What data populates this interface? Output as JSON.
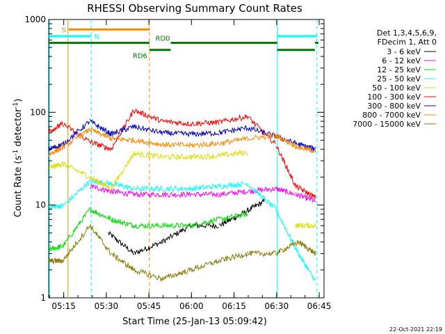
{
  "chart_data": {
    "type": "line",
    "title": "RHESSI Observing Summary Count Rates",
    "xlabel": "Start Time (25-Jan-13 05:09:42)",
    "ylabel_main": "Count Rate (s",
    "ylabel_sup1": "-1",
    "ylabel_mid": " detector",
    "ylabel_sup2": "-1",
    "ylabel_end": ")",
    "yscale": "log",
    "ylim": [
      1,
      1000
    ],
    "xlim_minutes": [
      0,
      97
    ],
    "x_ticks": [
      {
        "label": "05:15",
        "t": 5.3
      },
      {
        "label": "05:30",
        "t": 20.3
      },
      {
        "label": "05:45",
        "t": 35.3
      },
      {
        "label": "06:00",
        "t": 50.3
      },
      {
        "label": "06:15",
        "t": 65.3
      },
      {
        "label": "06:30",
        "t": 80.3
      },
      {
        "label": "06:45",
        "t": 95.3
      }
    ],
    "y_ticks": [
      {
        "label": "1",
        "v": 1
      },
      {
        "label": "10",
        "v": 10
      },
      {
        "label": "100",
        "v": 100
      },
      {
        "label": "1000",
        "v": 1000
      }
    ],
    "legend_header": [
      "Det 1,3,4,5,6,9,",
      "FDecim 1, Att 0"
    ],
    "series": [
      {
        "name": "3 - 6 keV",
        "color": "#000000",
        "values": [
          [
            0,
            null
          ],
          [
            14.5,
            null
          ],
          [
            21,
            5
          ],
          [
            30,
            3
          ],
          [
            40,
            4
          ],
          [
            50,
            6
          ],
          [
            60,
            6
          ],
          [
            68,
            8
          ],
          [
            76,
            11
          ],
          [
            80,
            null
          ]
        ]
      },
      {
        "name": "6 - 12 keV",
        "color": "#ff00ff",
        "values": [
          [
            14.5,
            16
          ],
          [
            22,
            14
          ],
          [
            30,
            13
          ],
          [
            40,
            13
          ],
          [
            50,
            13
          ],
          [
            60,
            13
          ],
          [
            70,
            14
          ],
          [
            80,
            15
          ],
          [
            87,
            13
          ],
          [
            94,
            11
          ]
        ]
      },
      {
        "name": "12 - 25 keV",
        "color": "#00dd00",
        "values": [
          [
            0,
            3.3
          ],
          [
            5,
            3.6
          ],
          [
            14.5,
            9
          ],
          [
            22,
            7
          ],
          [
            30,
            6
          ],
          [
            40,
            6
          ],
          [
            50,
            6
          ],
          [
            60,
            7
          ],
          [
            70,
            8
          ],
          [
            80,
            null
          ]
        ]
      },
      {
        "name": "25 - 50 keV",
        "color": "#00ffff",
        "values": [
          [
            0,
            9.5
          ],
          [
            5,
            9.8
          ],
          [
            14.5,
            18
          ],
          [
            22,
            17
          ],
          [
            30,
            15
          ],
          [
            40,
            15
          ],
          [
            50,
            15
          ],
          [
            60,
            16
          ],
          [
            70,
            17
          ],
          [
            80,
            9
          ],
          [
            88,
            3
          ],
          [
            94,
            1.5
          ]
        ]
      },
      {
        "name": "50 - 100 keV",
        "color": "#dddd00",
        "values": [
          [
            0,
            25
          ],
          [
            5,
            28
          ],
          [
            14.5,
            20
          ],
          [
            22,
            15
          ],
          [
            30,
            36
          ],
          [
            40,
            33
          ],
          [
            50,
            33
          ],
          [
            60,
            34
          ],
          [
            70,
            37
          ],
          [
            80,
            null
          ],
          [
            87,
            6
          ],
          [
            94,
            6
          ]
        ]
      },
      {
        "name": "100 - 300 keV",
        "color": "#ff0000",
        "values": [
          [
            0,
            62
          ],
          [
            5,
            75
          ],
          [
            14.5,
            48
          ],
          [
            22,
            40
          ],
          [
            30,
            105
          ],
          [
            40,
            80
          ],
          [
            50,
            75
          ],
          [
            60,
            78
          ],
          [
            70,
            90
          ],
          [
            80,
            45
          ],
          [
            87,
            16
          ],
          [
            94,
            12
          ]
        ]
      },
      {
        "name": "300 - 800 keV",
        "color": "#0000cc",
        "values": [
          [
            0,
            40
          ],
          [
            5,
            45
          ],
          [
            14.5,
            80
          ],
          [
            22,
            58
          ],
          [
            30,
            70
          ],
          [
            40,
            60
          ],
          [
            50,
            58
          ],
          [
            60,
            60
          ],
          [
            70,
            68
          ],
          [
            80,
            55
          ],
          [
            88,
            45
          ],
          [
            94,
            40
          ]
        ]
      },
      {
        "name": "800 - 7000 keV",
        "color": "#ff8800",
        "values": [
          [
            0,
            35
          ],
          [
            5,
            42
          ],
          [
            14.5,
            65
          ],
          [
            22,
            52
          ],
          [
            30,
            50
          ],
          [
            40,
            45
          ],
          [
            50,
            44
          ],
          [
            60,
            46
          ],
          [
            70,
            52
          ],
          [
            80,
            56
          ],
          [
            88,
            42
          ],
          [
            94,
            38
          ]
        ]
      },
      {
        "name": "7000 - 15000 keV",
        "color": "#887700",
        "values": [
          [
            0,
            2.5
          ],
          [
            5,
            2.5
          ],
          [
            14.5,
            6
          ],
          [
            22,
            3
          ],
          [
            30,
            2
          ],
          [
            40,
            1.6
          ],
          [
            50,
            2
          ],
          [
            60,
            2.5
          ],
          [
            70,
            3
          ],
          [
            80,
            3
          ],
          [
            88,
            4
          ],
          [
            94,
            3
          ]
        ]
      }
    ],
    "flags": [
      {
        "label": "S",
        "color": "#ff8800",
        "level": 780,
        "segments": [
          [
            7,
            35.5
          ]
        ]
      },
      {
        "label": "N",
        "color": "#00ffff",
        "level": 660,
        "segments": [
          [
            0,
            15
          ],
          [
            80.5,
            94.5
          ]
        ]
      },
      {
        "label": "RD0",
        "color": "#007700",
        "level": 560,
        "segments": [
          [
            0,
            35.5
          ],
          [
            43,
            80.5
          ],
          [
            93.8,
            95
          ]
        ]
      },
      {
        "label": "RD6",
        "color": "#007700",
        "level": 470,
        "segments": [
          [
            35.5,
            43
          ],
          [
            80.5,
            93.8
          ]
        ]
      }
    ],
    "vlines": [
      {
        "t": 0.3,
        "color": "#00ffff",
        "style": "solid"
      },
      {
        "t": 6.8,
        "color": "#ff8800",
        "style": "solid"
      },
      {
        "t": 15.0,
        "color": "#00ffff",
        "style": "dashed"
      },
      {
        "t": 35.5,
        "color": "#ff8800",
        "style": "dashed"
      },
      {
        "t": 80.5,
        "color": "#00ffff",
        "style": "solid"
      },
      {
        "t": 94.5,
        "color": "#00ffff",
        "style": "dashed"
      }
    ],
    "footer_date": "22-Oct-2021 22:19"
  }
}
